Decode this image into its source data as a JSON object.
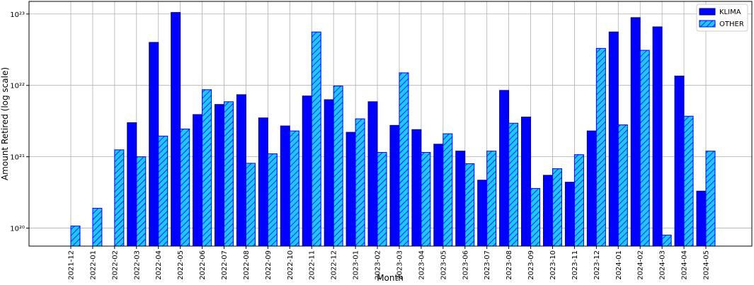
{
  "chart_data": {
    "type": "bar",
    "log_scale": true,
    "grid": true,
    "legend": "upper right",
    "x_label": "Month",
    "y_label": "Amount Retired (log scale)",
    "categories": [
      "2021-12",
      "2022-01",
      "2022-02",
      "2022-03",
      "2022-04",
      "2022-05",
      "2022-06",
      "2022-07",
      "2022-08",
      "2022-09",
      "2022-10",
      "2022-11",
      "2022-12",
      "2023-01",
      "2023-02",
      "2023-03",
      "2023-04",
      "2023-05",
      "2023-06",
      "2023-07",
      "2023-08",
      "2023-09",
      "2023-10",
      "2023-11",
      "2023-12",
      "2024-01",
      "2024-02",
      "2024-03",
      "2024-04",
      "2024-05"
    ],
    "series": [
      {
        "name": "KLIMA",
        "color": "#0000ff",
        "hatch": false,
        "values": [
          null,
          null,
          null,
          3e+21,
          4e+22,
          1.05e+23,
          3.9e+21,
          5.4e+21,
          7.4e+21,
          3.5e+21,
          2.7e+21,
          7.1e+21,
          6.3e+21,
          2.2e+21,
          5.9e+21,
          2.75e+21,
          2.4e+21,
          1.5e+21,
          1.2e+21,
          4.7e+20,
          8.5e+21,
          3.6e+21,
          5.5e+20,
          4.4e+20,
          2.3e+21,
          5.6e+22,
          8.9e+22,
          6.6e+22,
          1.35e+22,
          3.3e+20
        ]
      },
      {
        "name": "OTHER",
        "color": "#1ec8ff",
        "hatch": true,
        "values": [
          1.07e+20,
          1.9e+20,
          1.25e+21,
          1e+21,
          1.95e+21,
          2.45e+21,
          8.7e+21,
          5.9e+21,
          8.1e+20,
          1.1e+21,
          2.3e+21,
          5.6e+22,
          9.8e+21,
          3.4e+21,
          1.15e+21,
          1.5e+22,
          1.15e+21,
          2.1e+21,
          8e+20,
          1.2e+21,
          2.95e+21,
          3.6e+20,
          6.8e+20,
          1.07e+21,
          3.3e+22,
          2.8e+21,
          3.1e+22,
          8e+19,
          3.7e+21,
          1.2e+21
        ]
      }
    ],
    "ylim": [
      5.6e+19,
      1.5e+23
    ],
    "yticks": [
      {
        "value": 1e+20,
        "label": "10²⁰"
      },
      {
        "value": 1e+21,
        "label": "10²¹"
      },
      {
        "value": 1e+22,
        "label": "10²²"
      },
      {
        "value": 1e+23,
        "label": "10²³"
      }
    ]
  }
}
